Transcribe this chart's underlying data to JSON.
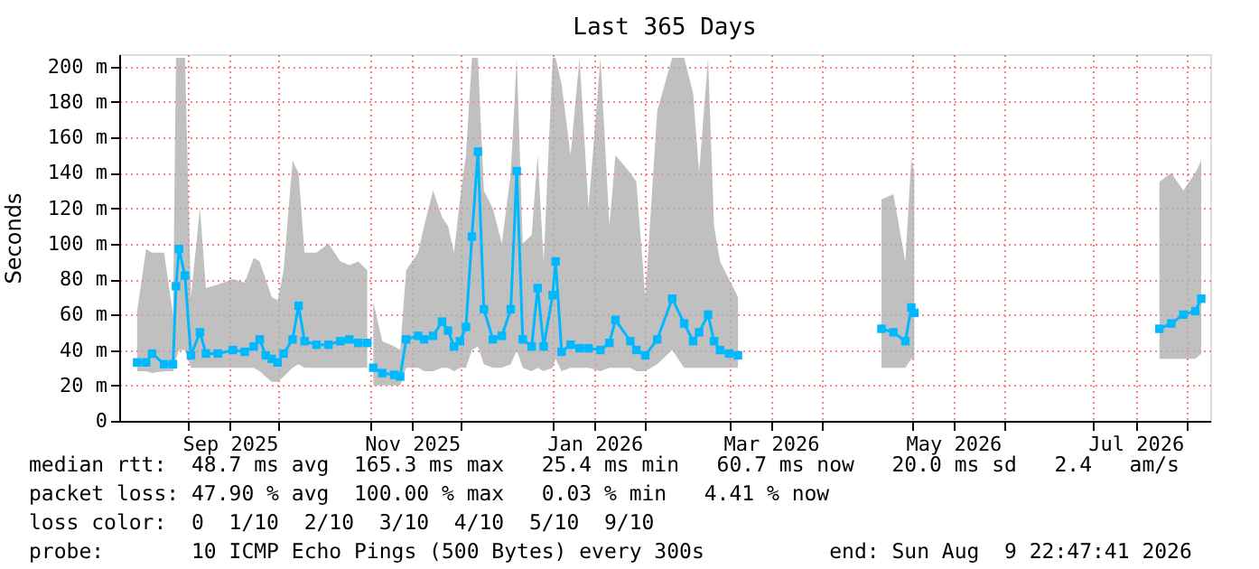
{
  "chart_data": {
    "type": "line",
    "title": "Last 365 Days",
    "ylabel": "Seconds",
    "x": [
      "2025-08-15",
      "2025-08-18",
      "2025-08-20",
      "2025-08-24",
      "2025-08-27",
      "2025-08-28",
      "2025-08-29",
      "2025-08-31",
      "2025-09-02",
      "2025-09-05",
      "2025-09-07",
      "2025-09-11",
      "2025-09-16",
      "2025-09-20",
      "2025-09-23",
      "2025-09-25",
      "2025-09-27",
      "2025-09-29",
      "2025-10-01",
      "2025-10-03",
      "2025-10-06",
      "2025-10-08",
      "2025-10-10",
      "2025-10-14",
      "2025-10-18",
      "2025-10-22",
      "2025-10-25",
      "2025-10-28",
      "2025-10-31",
      "2025-11-01",
      "2025-11-02",
      "2025-11-05",
      "2025-11-09",
      "2025-11-11",
      "2025-11-13",
      "2025-11-17",
      "2025-11-19",
      "2025-11-22",
      "2025-11-25",
      "2025-11-27",
      "2025-11-29",
      "2025-12-01",
      "2025-12-03",
      "2025-12-05",
      "2025-12-07",
      "2025-12-09",
      "2025-12-12",
      "2025-12-15",
      "2025-12-18",
      "2025-12-20",
      "2025-12-22",
      "2025-12-25",
      "2025-12-27",
      "2025-12-29",
      "2026-01-01",
      "2026-01-02",
      "2026-01-04",
      "2026-01-07",
      "2026-01-10",
      "2026-01-13",
      "2026-01-17",
      "2026-01-20",
      "2026-01-22",
      "2026-01-27",
      "2026-01-29",
      "2026-02-01",
      "2026-02-05",
      "2026-02-10",
      "2026-02-14",
      "2026-02-17",
      "2026-02-19",
      "2026-02-22",
      "2026-02-24",
      "2026-02-26",
      "2026-03-01",
      "2026-03-04",
      "2026-03-10",
      "2026-04-21",
      "2026-04-25",
      "2026-04-29",
      "2026-05-01",
      "2026-05-02",
      "2026-06-01",
      "2026-07-23",
      "2026-07-27",
      "2026-07-31",
      "2026-08-04",
      "2026-08-06"
    ],
    "series": [
      {
        "color": "#00b8ff",
        "values": [
          33,
          33,
          38,
          32,
          32,
          76,
          97,
          82,
          37,
          50,
          38,
          38,
          40,
          39,
          42,
          46,
          37,
          35,
          33,
          38,
          46,
          65,
          45,
          43,
          43,
          45,
          46,
          44,
          44,
          null,
          30,
          27,
          26,
          25,
          46,
          48,
          46,
          48,
          56,
          51,
          42,
          45,
          53,
          104,
          152,
          63,
          46,
          48,
          63,
          141,
          46,
          42,
          75,
          42,
          71,
          90,
          39,
          43,
          41,
          41,
          40,
          44,
          57,
          45,
          40,
          37,
          46,
          69,
          55,
          45,
          50,
          60,
          45,
          40,
          38,
          37,
          null,
          52,
          50,
          45,
          64,
          61,
          null,
          52,
          55,
          60,
          62,
          69
        ],
        "lower": [
          28,
          28,
          27,
          28,
          28,
          35,
          40,
          40,
          30,
          30,
          30,
          30,
          30,
          30,
          30,
          28,
          25,
          22,
          22,
          25,
          30,
          32,
          30,
          30,
          30,
          30,
          30,
          30,
          30,
          null,
          20,
          20,
          20,
          20,
          30,
          30,
          28,
          28,
          30,
          30,
          28,
          30,
          30,
          40,
          42,
          32,
          30,
          30,
          32,
          40,
          30,
          28,
          30,
          28,
          30,
          35,
          28,
          30,
          30,
          30,
          28,
          30,
          30,
          30,
          28,
          28,
          32,
          40,
          30,
          30,
          30,
          30,
          30,
          30,
          30,
          30,
          null,
          30,
          30,
          30,
          35,
          35,
          null,
          35,
          35,
          35,
          35,
          38
        ],
        "upper": [
          62,
          97,
          95,
          95,
          60,
          205,
          205,
          205,
          70,
          120,
          75,
          77,
          80,
          78,
          92,
          90,
          80,
          70,
          68,
          85,
          147,
          140,
          95,
          95,
          100,
          90,
          88,
          90,
          85,
          null,
          67,
          45,
          42,
          40,
          85,
          95,
          110,
          130,
          115,
          110,
          95,
          125,
          150,
          205,
          205,
          130,
          120,
          100,
          140,
          205,
          100,
          105,
          150,
          90,
          205,
          205,
          190,
          150,
          205,
          120,
          205,
          110,
          150,
          140,
          135,
          70,
          175,
          205,
          205,
          185,
          140,
          205,
          110,
          90,
          80,
          70,
          null,
          125,
          128,
          90,
          148,
          140,
          null,
          135,
          140,
          130,
          140,
          147
        ]
      }
    ],
    "xlim": [
      "2025-08-09",
      "2026-08-09"
    ],
    "xticks": [
      {
        "value": "2025-09-01",
        "label": null
      },
      {
        "value": "2025-09-15",
        "label": "Sep 2025"
      },
      {
        "value": "2025-10-01",
        "label": null
      },
      {
        "value": "2025-11-01",
        "label": null
      },
      {
        "value": "2025-11-15",
        "label": "Nov 2025"
      },
      {
        "value": "2025-12-01",
        "label": null
      },
      {
        "value": "2026-01-01",
        "label": null
      },
      {
        "value": "2026-01-15",
        "label": "Jan 2026"
      },
      {
        "value": "2026-02-01",
        "label": null
      },
      {
        "value": "2026-03-01",
        "label": null
      },
      {
        "value": "2026-03-15",
        "label": "Mar 2026"
      },
      {
        "value": "2026-04-01",
        "label": null
      },
      {
        "value": "2026-05-01",
        "label": null
      },
      {
        "value": "2026-05-15",
        "label": "May 2026"
      },
      {
        "value": "2026-06-01",
        "label": null
      },
      {
        "value": "2026-07-01",
        "label": null
      },
      {
        "value": "2026-07-15",
        "label": "Jul 2026"
      },
      {
        "value": "2026-08-01",
        "label": null
      }
    ],
    "ylim": [
      0,
      207
    ],
    "yticks": [
      {
        "value": 0,
        "label": "0"
      },
      {
        "value": 20,
        "label": "20 m"
      },
      {
        "value": 40,
        "label": "40 m"
      },
      {
        "value": 60,
        "label": "60 m"
      },
      {
        "value": 80,
        "label": "80 m"
      },
      {
        "value": 100,
        "label": "100 m"
      },
      {
        "value": 120,
        "label": "120 m"
      },
      {
        "value": 140,
        "label": "140 m"
      },
      {
        "value": 160,
        "label": "160 m"
      },
      {
        "value": 180,
        "label": "180 m"
      },
      {
        "value": 200,
        "label": "200 m"
      }
    ],
    "grid": true,
    "marker": "square",
    "line_style": "solid",
    "annotations": [
      "median rtt:  48.7 ms avg  165.3 ms max   25.4 ms min   60.7 ms now   20.0 ms sd   2.4   am/s",
      "packet loss: 47.90 % avg  100.00 % max   0.03 % min   4.41 % now",
      "loss color:  0  1/10  2/10  3/10  4/10  5/10  9/10",
      "probe:       10 ICMP Echo Pings (500 Bytes) every 300s          end: Sun Aug  9 22:47:41 2026"
    ]
  }
}
